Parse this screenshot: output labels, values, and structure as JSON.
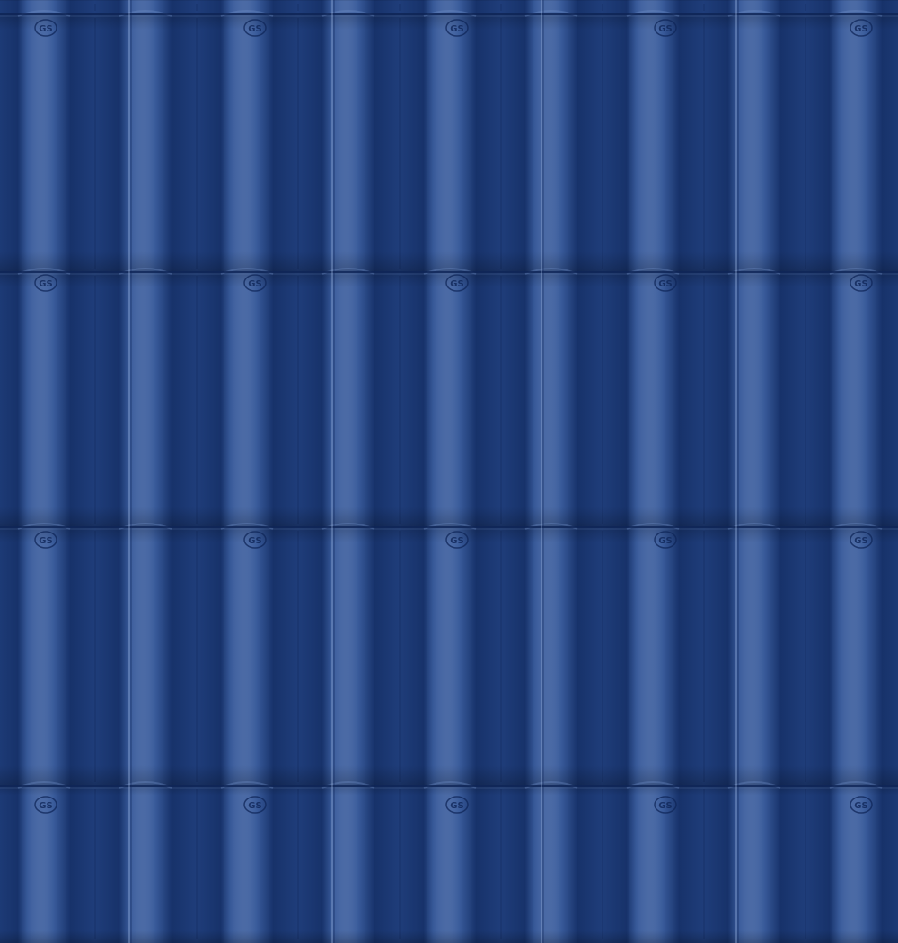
{
  "texture": {
    "subject": "blue glazed roof tiles",
    "colors": {
      "base": "#1f3d7a",
      "dark": "#17326a",
      "light": "#3a5c9c",
      "highlight": "#6f8fc8",
      "seam": "#0f2558"
    },
    "grid": {
      "columns": 4,
      "rows": 4,
      "tiles_per_column": 2
    },
    "stamp": {
      "text": "GS",
      "shape": "oval-logo"
    }
  }
}
